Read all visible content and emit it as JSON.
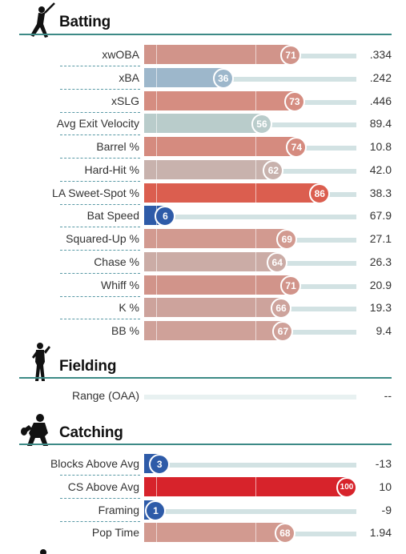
{
  "sections": {
    "batting": {
      "title": "Batting",
      "icon": "batter-silhouette-icon",
      "rows": [
        {
          "label": "xwOBA",
          "percentile": 71,
          "value": ".334",
          "color": "#d1948a"
        },
        {
          "label": "xBA",
          "percentile": 36,
          "value": ".242",
          "color": "#9db7cb"
        },
        {
          "label": "xSLG",
          "percentile": 73,
          "value": ".446",
          "color": "#d58d81"
        },
        {
          "label": "Avg Exit Velocity",
          "percentile": 56,
          "value": "89.4",
          "color": "#b9cccb"
        },
        {
          "label": "Barrel %",
          "percentile": 74,
          "value": "10.8",
          "color": "#d58b7f"
        },
        {
          "label": "Hard-Hit %",
          "percentile": 62,
          "value": "42.0",
          "color": "#c8b2ad"
        },
        {
          "label": "LA Sweet-Spot %",
          "percentile": 86,
          "value": "38.3",
          "color": "#db5e4f"
        },
        {
          "label": "Bat Speed",
          "percentile": 6,
          "value": "67.9",
          "color": "#2e5ba8"
        },
        {
          "label": "Squared-Up %",
          "percentile": 69,
          "value": "27.1",
          "color": "#d29a90"
        },
        {
          "label": "Chase %",
          "percentile": 64,
          "value": "26.3",
          "color": "#cbaca6"
        },
        {
          "label": "Whiff %",
          "percentile": 71,
          "value": "20.9",
          "color": "#d1948a"
        },
        {
          "label": "K %",
          "percentile": 66,
          "value": "19.3",
          "color": "#cda39c"
        },
        {
          "label": "BB %",
          "percentile": 67,
          "value": "9.4",
          "color": "#cfa199"
        }
      ]
    },
    "fielding": {
      "title": "Fielding",
      "icon": "fielder-silhouette-icon",
      "rows": [
        {
          "label": "Range (OAA)",
          "percentile": null,
          "value": "--",
          "color": "#e8f1f1"
        }
      ]
    },
    "catching": {
      "title": "Catching",
      "icon": "catcher-silhouette-icon",
      "rows": [
        {
          "label": "Blocks Above Avg",
          "percentile": 3,
          "value": "-13",
          "color": "#2e5ba8"
        },
        {
          "label": "CS Above Avg",
          "percentile": 100,
          "value": "10",
          "color": "#d7232b"
        },
        {
          "label": "Framing",
          "percentile": 1,
          "value": "-9",
          "color": "#2e5ba8"
        },
        {
          "label": "Pop Time",
          "percentile": 68,
          "value": "1.94",
          "color": "#d29a90"
        }
      ]
    }
  },
  "chart_data": {
    "type": "bar",
    "categories": [
      "xwOBA",
      "xBA",
      "xSLG",
      "Avg Exit Velocity",
      "Barrel %",
      "Hard-Hit %",
      "LA Sweet-Spot %",
      "Bat Speed",
      "Squared-Up %",
      "Chase %",
      "Whiff %",
      "K %",
      "BB %",
      "Range (OAA)",
      "Blocks Above Avg",
      "CS Above Avg",
      "Framing",
      "Pop Time"
    ],
    "values": [
      71,
      36,
      73,
      56,
      74,
      62,
      86,
      6,
      69,
      64,
      71,
      66,
      67,
      null,
      3,
      100,
      1,
      68
    ],
    "ylim": [
      0,
      100
    ]
  }
}
